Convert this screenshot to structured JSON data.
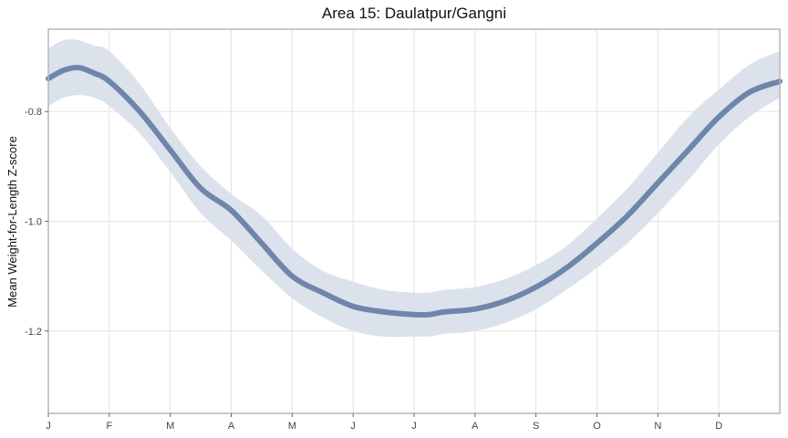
{
  "chart_data": {
    "type": "line",
    "title": "Area 15: Daulatpur/Gangni",
    "xlabel": "",
    "ylabel": "Mean Weight-for-Length Z-score",
    "x_ticks": [
      "J",
      "F",
      "M",
      "A",
      "M",
      "J",
      "J",
      "A",
      "S",
      "O",
      "N",
      "D"
    ],
    "y_ticks": [
      -0.8,
      -1.0,
      -1.2
    ],
    "xlim": [
      0,
      12
    ],
    "ylim": [
      -1.35,
      -0.65
    ],
    "grid": true,
    "legend": "none",
    "line_color": "#6f86aa",
    "band_color": "#dbe2ec",
    "series": [
      {
        "x": [
          0,
          0.25,
          0.5,
          0.75,
          1,
          1.5,
          2,
          2.5,
          3,
          3.5,
          4,
          4.5,
          5,
          5.5,
          6,
          6.25,
          6.5,
          7,
          7.5,
          8,
          8.5,
          9,
          9.5,
          10,
          10.5,
          11,
          11.5,
          12
        ],
        "y": [
          -0.74,
          -0.725,
          -0.72,
          -0.73,
          -0.745,
          -0.8,
          -0.87,
          -0.94,
          -0.98,
          -1.04,
          -1.1,
          -1.13,
          -1.155,
          -1.165,
          -1.17,
          -1.17,
          -1.165,
          -1.16,
          -1.145,
          -1.12,
          -1.085,
          -1.04,
          -0.99,
          -0.93,
          -0.87,
          -0.81,
          -0.765,
          -0.745
        ],
        "lower": [
          -0.79,
          -0.775,
          -0.77,
          -0.775,
          -0.79,
          -0.84,
          -0.91,
          -0.985,
          -1.035,
          -1.09,
          -1.14,
          -1.175,
          -1.2,
          -1.21,
          -1.21,
          -1.21,
          -1.205,
          -1.2,
          -1.185,
          -1.16,
          -1.125,
          -1.085,
          -1.04,
          -0.985,
          -0.925,
          -0.86,
          -0.81,
          -0.775
        ],
        "upper": [
          -0.685,
          -0.67,
          -0.67,
          -0.68,
          -0.69,
          -0.75,
          -0.83,
          -0.9,
          -0.95,
          -0.99,
          -1.05,
          -1.09,
          -1.11,
          -1.125,
          -1.13,
          -1.13,
          -1.125,
          -1.12,
          -1.105,
          -1.08,
          -1.045,
          -0.995,
          -0.94,
          -0.875,
          -0.81,
          -0.76,
          -0.715,
          -0.69
        ]
      }
    ]
  }
}
